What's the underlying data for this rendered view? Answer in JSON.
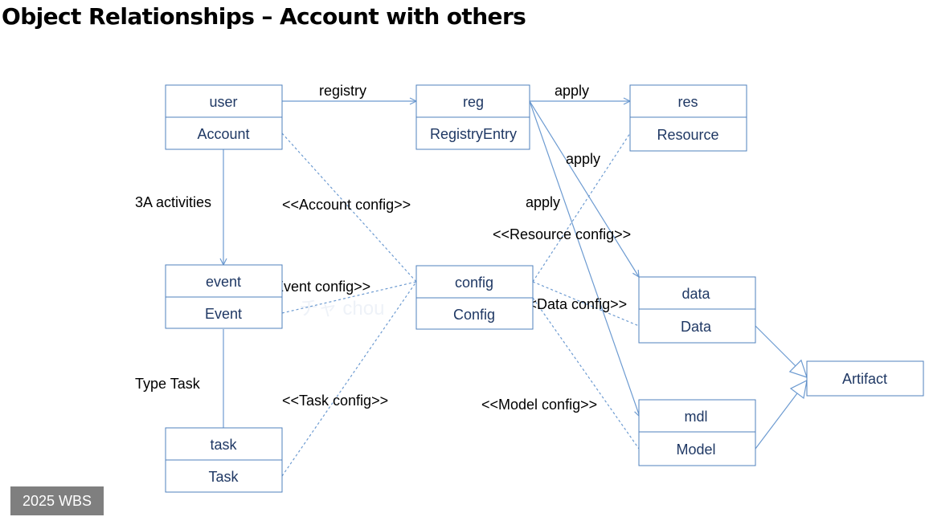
{
  "title": "Object Relationships – Account with others",
  "badge": "2025 WBS",
  "watermark": "チャ chou",
  "nodes": [
    {
      "id": "user",
      "top": "user",
      "bottom": "Account"
    },
    {
      "id": "reg",
      "top": "reg",
      "bottom": "RegistryEntry"
    },
    {
      "id": "res",
      "top": "res",
      "bottom": "Resource"
    },
    {
      "id": "event",
      "top": "event",
      "bottom": "Event"
    },
    {
      "id": "config",
      "top": "config",
      "bottom": "Config"
    },
    {
      "id": "data",
      "top": "data",
      "bottom": "Data"
    },
    {
      "id": "task",
      "top": "task",
      "bottom": "Task"
    },
    {
      "id": "mdl",
      "top": "mdl",
      "bottom": "Model"
    },
    {
      "id": "artifact",
      "label": "Artifact"
    }
  ],
  "edges": [
    {
      "id": "user-reg",
      "from": "user",
      "to": "reg",
      "style": "solid",
      "label": "registry"
    },
    {
      "id": "reg-res",
      "from": "reg",
      "to": "res",
      "style": "solid",
      "label": "apply"
    },
    {
      "id": "reg-data",
      "from": "reg",
      "to": "data",
      "style": "solid",
      "label": "apply"
    },
    {
      "id": "reg-mdl",
      "from": "reg",
      "to": "mdl",
      "style": "solid",
      "label": "apply"
    },
    {
      "id": "user-event",
      "from": "user",
      "to": "event",
      "style": "solid",
      "label": "3A activities"
    },
    {
      "id": "event-task",
      "from": "event",
      "to": "task",
      "style": "solid",
      "label": "Type Task"
    },
    {
      "id": "account-config",
      "from": "user",
      "to": "config",
      "style": "dashed",
      "label": "<<Account config>>"
    },
    {
      "id": "event-config",
      "from": "event",
      "to": "config",
      "style": "dashed",
      "label": "<<Event config>>"
    },
    {
      "id": "task-config",
      "from": "task",
      "to": "config",
      "style": "dashed",
      "label": "<<Task config>>"
    },
    {
      "id": "resource-config",
      "from": "config",
      "to": "res",
      "style": "dashed",
      "label": "<<Resource config>>"
    },
    {
      "id": "data-config",
      "from": "config",
      "to": "data",
      "style": "dashed",
      "label": "<<Data config>>"
    },
    {
      "id": "model-config",
      "from": "config",
      "to": "mdl",
      "style": "dashed",
      "label": "<<Model config>>"
    },
    {
      "id": "data-artifact",
      "from": "data",
      "to": "artifact",
      "style": "generalization",
      "label": ""
    },
    {
      "id": "model-artifact",
      "from": "mdl",
      "to": "artifact",
      "style": "generalization",
      "label": ""
    }
  ]
}
